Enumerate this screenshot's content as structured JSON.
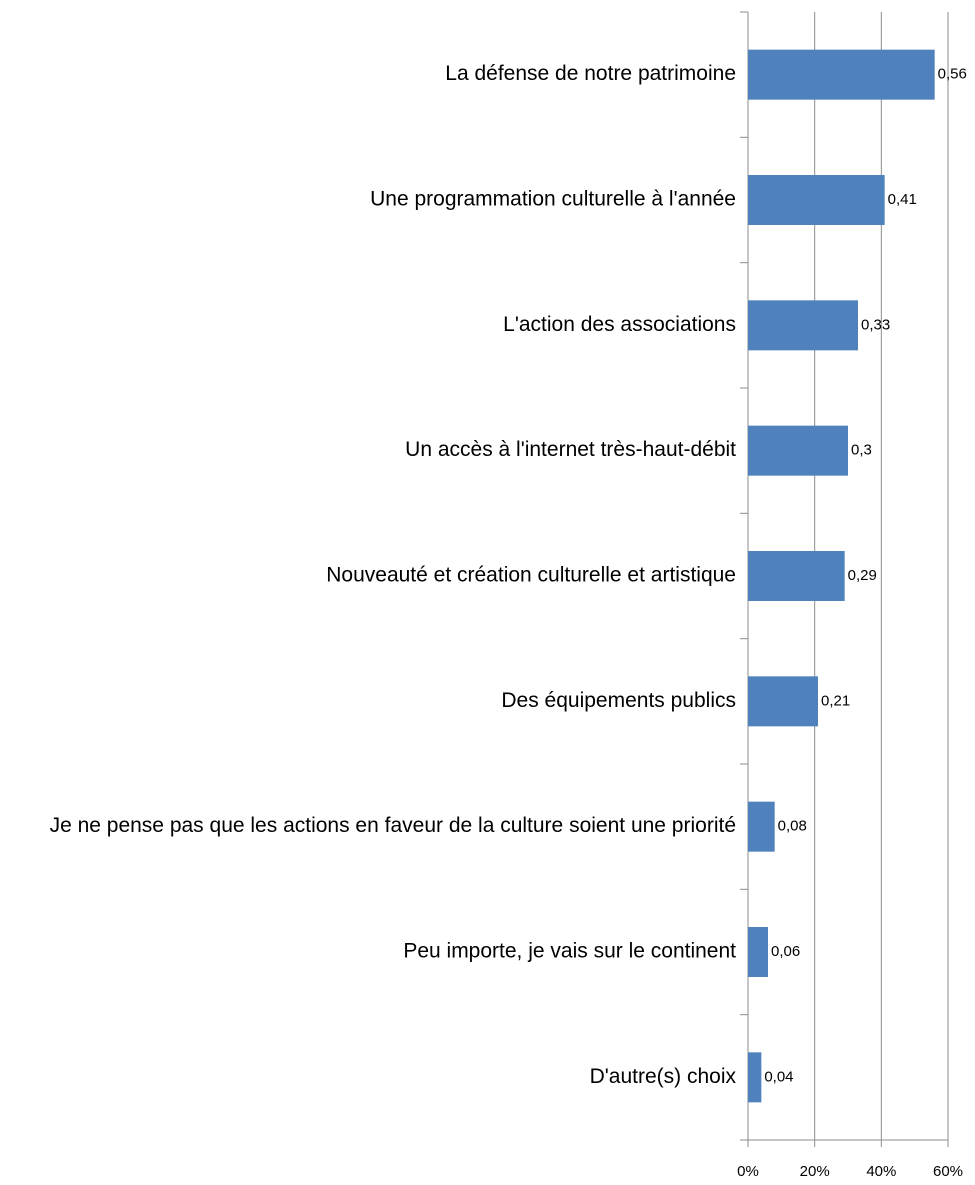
{
  "chart_data": {
    "type": "bar",
    "orientation": "horizontal",
    "categories": [
      "La défense de notre patrimoine",
      "Une programmation culturelle à l'année",
      "L'action des associations",
      "Un accès à l'internet très-haut-débit",
      "Nouveauté et création culturelle et artistique",
      "Des équipements publics",
      "Je ne pense pas que les actions en faveur de la culture soient une priorité",
      "Peu importe, je vais sur le continent",
      "D'autre(s) choix"
    ],
    "values": [
      56,
      41,
      33,
      30,
      29,
      21,
      8,
      6,
      4
    ],
    "value_labels": [
      "0,56",
      "0,41",
      "0,33",
      "0,3",
      "0,29",
      "0,21",
      "0,08",
      "0,06",
      "0,04"
    ],
    "color": "#4f81bd",
    "xlim": [
      0,
      60
    ],
    "xticks": [
      {
        "value": 0,
        "label": "0%"
      },
      {
        "value": 20,
        "label": "20%"
      },
      {
        "value": 40,
        "label": "40%"
      },
      {
        "value": 60,
        "label": "60%"
      }
    ],
    "grid": true
  }
}
